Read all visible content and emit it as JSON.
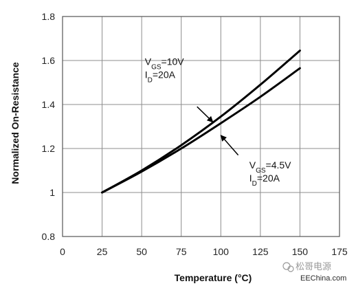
{
  "chart_data": {
    "type": "line",
    "xlabel": "Temperature (°C)",
    "ylabel": "Normalized On-Resistance",
    "xlim": [
      0,
      175
    ],
    "ylim": [
      0.8,
      1.8
    ],
    "xticks": [
      0,
      25,
      50,
      75,
      100,
      125,
      150,
      175
    ],
    "yticks": [
      0.8,
      1,
      1.2,
      1.4,
      1.6,
      1.8
    ],
    "xtick_labels": [
      "0",
      "25",
      "50",
      "75",
      "100",
      "125",
      "150",
      "175"
    ],
    "ytick_labels": [
      "0.8",
      "1",
      "1.2",
      "1.4",
      "1.6",
      "1.8"
    ],
    "grid": true,
    "series": [
      {
        "x": [
          25,
          50,
          75,
          100,
          125,
          150
        ],
        "y": [
          1.0,
          1.1,
          1.215,
          1.345,
          1.49,
          1.645
        ],
        "color": "#000000"
      },
      {
        "x": [
          25,
          50,
          75,
          100,
          125,
          150
        ],
        "y": [
          1.0,
          1.095,
          1.2,
          1.315,
          1.435,
          1.565
        ],
        "color": "#000000"
      }
    ],
    "annotations": [
      {
        "target_series": 0,
        "lines": [
          {
            "main": "V",
            "sub": "GS",
            "rest": "=10V"
          },
          {
            "main": "I",
            "sub": "D",
            "rest": "=20A"
          }
        ],
        "label_anchor": [
          52,
          1.58
        ],
        "arrow_from": [
          85,
          1.39
        ],
        "arrow_to": [
          95,
          1.32
        ]
      },
      {
        "target_series": 1,
        "lines": [
          {
            "main": "V",
            "sub": "GS",
            "rest": "=4.5V"
          },
          {
            "main": "I",
            "sub": "D",
            "rest": "=20A"
          }
        ],
        "label_anchor": [
          118,
          1.11
        ],
        "arrow_from": [
          111,
          1.17
        ],
        "arrow_to": [
          100,
          1.26
        ]
      }
    ]
  },
  "watermark": {
    "cn_text": "松哥电源",
    "en_text": "EEChina.com"
  }
}
